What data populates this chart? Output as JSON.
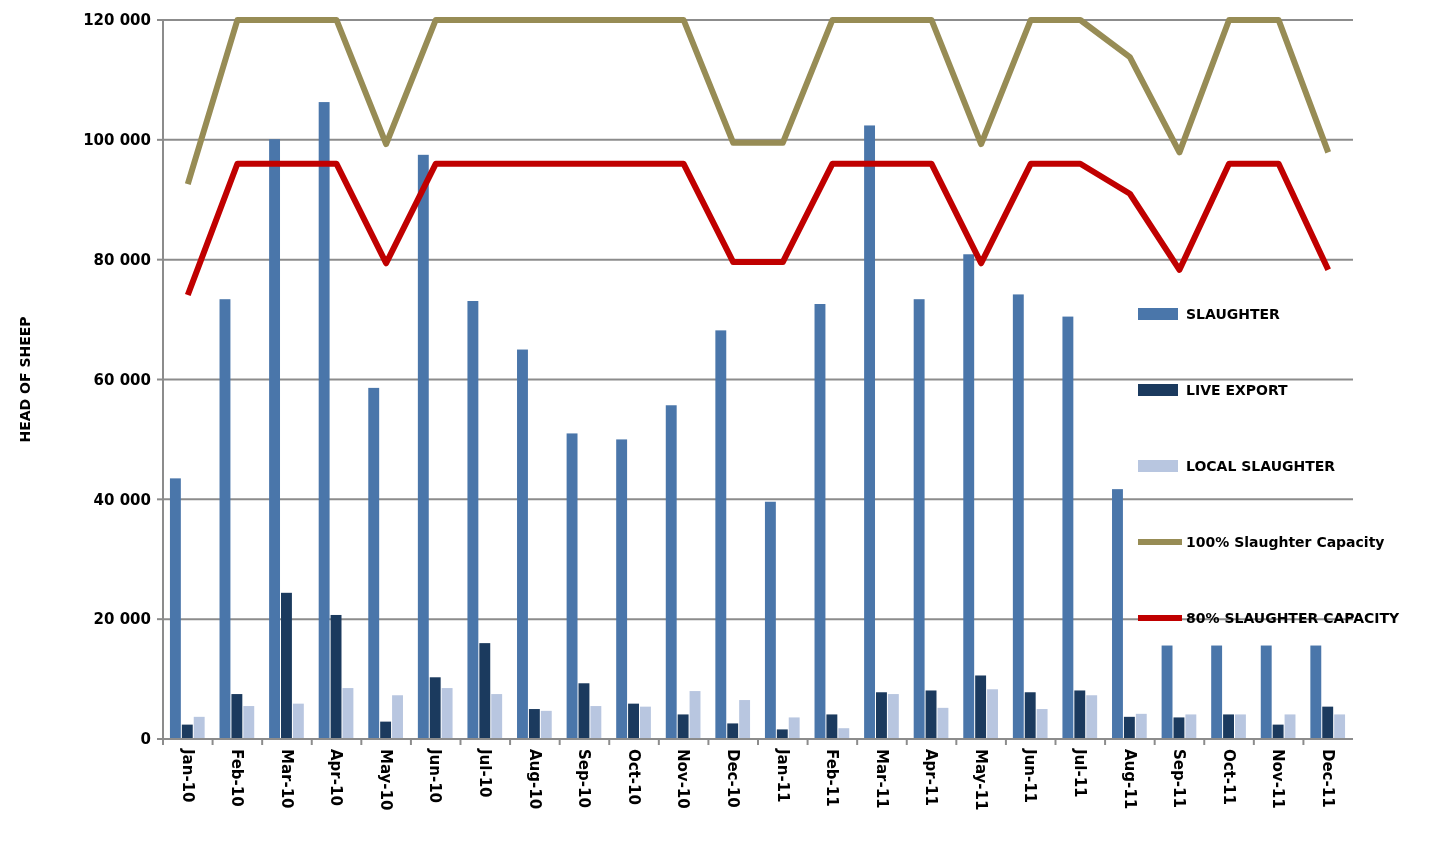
{
  "chart_data": {
    "type": "bar",
    "ylabel": "HEAD OF SHEEP",
    "categories": [
      "Jan-10",
      "Feb-10",
      "Mar-10",
      "Apr-10",
      "May-10",
      "Jun-10",
      "Jul-10",
      "Aug-10",
      "Sep-10",
      "Oct-10",
      "Nov-10",
      "Dec-10",
      "Jan-11",
      "Feb-11",
      "Mar-11",
      "Apr-11",
      "May-11",
      "Jun-11",
      "Jul-11",
      "Aug-11",
      "Sep-11",
      "Oct-11",
      "Nov-11",
      "Dec-11"
    ],
    "series": [
      {
        "name": "SLAUGHTER",
        "color": "#4a76aa",
        "values": [
          43500,
          73400,
          100100,
          106300,
          58600,
          97500,
          73100,
          65000,
          51000,
          50000,
          55700,
          68200,
          39600,
          72600,
          102400,
          73400,
          80900,
          74200,
          70500,
          41700,
          15600,
          15600,
          15600,
          15600
        ]
      },
      {
        "name": "LIVE EXPORT",
        "color": "#1b3a5e",
        "values": [
          2400,
          7500,
          24400,
          20700,
          2900,
          10300,
          16000,
          5000,
          9300,
          5900,
          4100,
          2600,
          1600,
          4100,
          7800,
          8100,
          10600,
          7800,
          8100,
          3700,
          3600,
          4100,
          2400,
          5400
        ]
      },
      {
        "name": "LOCAL SLAUGHTER",
        "color": "#b8c6e0",
        "values": [
          3700,
          5500,
          5900,
          8500,
          7300,
          8500,
          7500,
          4700,
          5500,
          5400,
          8000,
          6500,
          3600,
          1800,
          7500,
          5200,
          8300,
          5000,
          7300,
          4200,
          4100,
          4100,
          4100,
          4100
        ]
      },
      {
        "name": "100% Slaughter Capacity",
        "type": "line",
        "color": "#978c55",
        "values": [
          92600,
          120000,
          120000,
          120000,
          99300,
          120000,
          120000,
          120000,
          120000,
          120000,
          120000,
          99500,
          99500,
          120000,
          120000,
          120000,
          99300,
          120000,
          120000,
          113800,
          97900,
          120000,
          120000,
          97900
        ]
      },
      {
        "name": "80% SLAUGHTER CAPACITY",
        "type": "line",
        "color": "#c00000",
        "values": [
          74100,
          96000,
          96000,
          96000,
          79400,
          96000,
          96000,
          96000,
          96000,
          96000,
          96000,
          79600,
          79600,
          96000,
          96000,
          96000,
          79400,
          96000,
          96000,
          91000,
          78300,
          96000,
          96000,
          78300
        ]
      }
    ],
    "ylim": [
      0,
      120000
    ],
    "yticks": [
      {
        "value": 0,
        "label": "0"
      },
      {
        "value": 20000,
        "label": "20 000"
      },
      {
        "value": 40000,
        "label": "40 000"
      },
      {
        "value": 60000,
        "label": "60 000"
      },
      {
        "value": 80000,
        "label": "80 000"
      },
      {
        "value": 100000,
        "label": "100 000"
      },
      {
        "value": 120000,
        "label": "120 000"
      }
    ],
    "grid": "y",
    "legend": "right",
    "marker": "none",
    "line_style": "solid"
  }
}
